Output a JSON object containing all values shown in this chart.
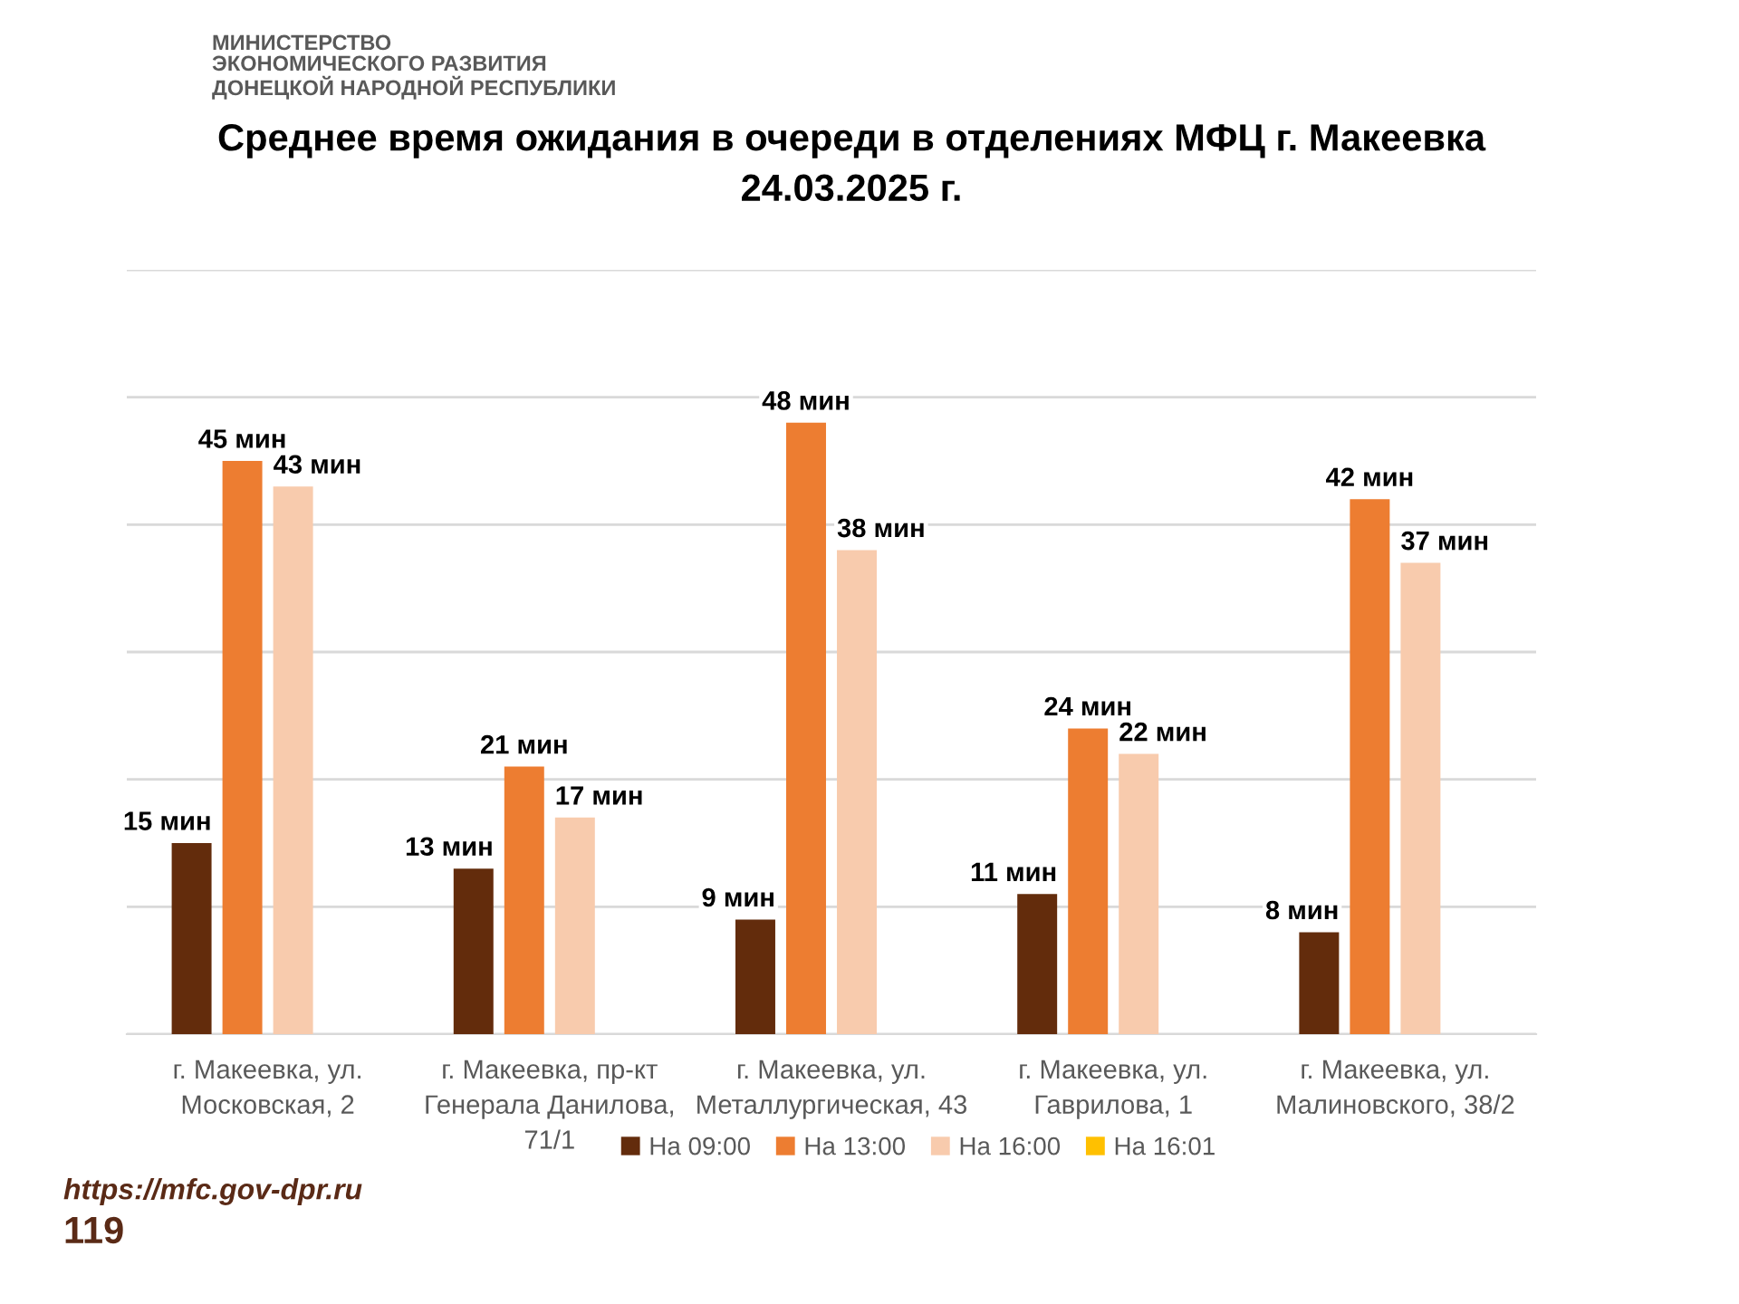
{
  "chart_data": {
    "type": "bar",
    "title": "Среднее время ожидания в очереди в отделениях МФЦ г. Макеевка 24.03.2025 г.",
    "categories": [
      "г. Макеевка, ул. Московская, 2",
      "г. Макеевка, пр-кт Генерала Данилова, 71/1",
      "г. Макеевка, ул. Металлургическая, 43",
      "г. Макеевка, ул. Гаврилова, 1",
      "г. Макеевка, ул. Малиновского, 38/2"
    ],
    "series": [
      {
        "name": "На 09:00",
        "color": "#632c0c",
        "values": [
          15,
          13,
          9,
          11,
          8
        ],
        "value_labels": [
          "15 мин",
          "13 мин",
          "9 мин",
          "11 мин",
          "8 мин"
        ]
      },
      {
        "name": "На 13:00",
        "color": "#ed7d31",
        "values": [
          45,
          21,
          48,
          24,
          42
        ],
        "value_labels": [
          "45 мин",
          "21 мин",
          "48 мин",
          "24 мин",
          "42 мин"
        ]
      },
      {
        "name": "На 16:00",
        "color": "#f8cbad",
        "values": [
          43,
          17,
          38,
          22,
          37
        ],
        "value_labels": [
          "43 мин",
          "17 мин",
          "38 мин",
          "22 мин",
          "37 мин"
        ]
      },
      {
        "name": "На 16:01",
        "color": "#ffc000",
        "values": [
          null,
          null,
          null,
          null,
          null
        ]
      }
    ],
    "ylim": [
      0,
      60
    ],
    "yticks": [
      {
        "value": 0,
        "label": null
      },
      {
        "value": 10,
        "label": null
      },
      {
        "value": 20,
        "label": null
      },
      {
        "value": 30,
        "label": null
      },
      {
        "value": 40,
        "label": null
      },
      {
        "value": 50,
        "label": null
      },
      {
        "value": 60,
        "label": null
      }
    ],
    "tick_labels": "x",
    "grid": "y",
    "legend": "bottom",
    "annotations": [
      "МИНИСТЕРСТВО ЭКОНОМИЧЕСКОГО РАЗВИТИЯ ДОНЕЦКОЙ НАРОДНОЙ РЕСПУБЛИКИ",
      "https://mfc.gov-dpr.ru",
      "119"
    ]
  }
}
